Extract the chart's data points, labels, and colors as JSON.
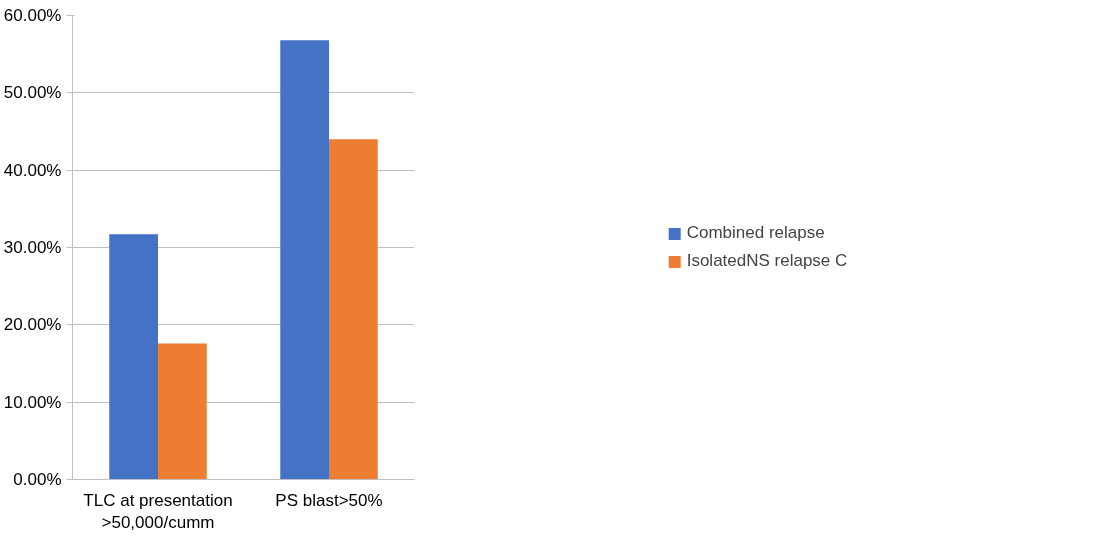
{
  "chart_data": {
    "type": "bar",
    "categories": [
      "TLC at presentation >50,000/cumm",
      "PS blast>50%"
    ],
    "series": [
      {
        "name": "Combined relapse",
        "color": "#4472c4",
        "values": [
          31.7,
          56.8
        ]
      },
      {
        "name": "IsolatedNS relapse C",
        "color": "#ed7d31",
        "values": [
          17.6,
          44.0
        ]
      }
    ],
    "ylim": [
      0,
      60
    ],
    "yticks": [
      {
        "value": 0,
        "label": "0.00%"
      },
      {
        "value": 10,
        "label": "10.00%"
      },
      {
        "value": 20,
        "label": "20.00%"
      },
      {
        "value": 30,
        "label": "30.00%"
      },
      {
        "value": 40,
        "label": "40.00%"
      },
      {
        "value": 50,
        "label": "50.00%"
      },
      {
        "value": 60,
        "label": "60.00%"
      }
    ],
    "grid": "y",
    "legend": "right"
  }
}
